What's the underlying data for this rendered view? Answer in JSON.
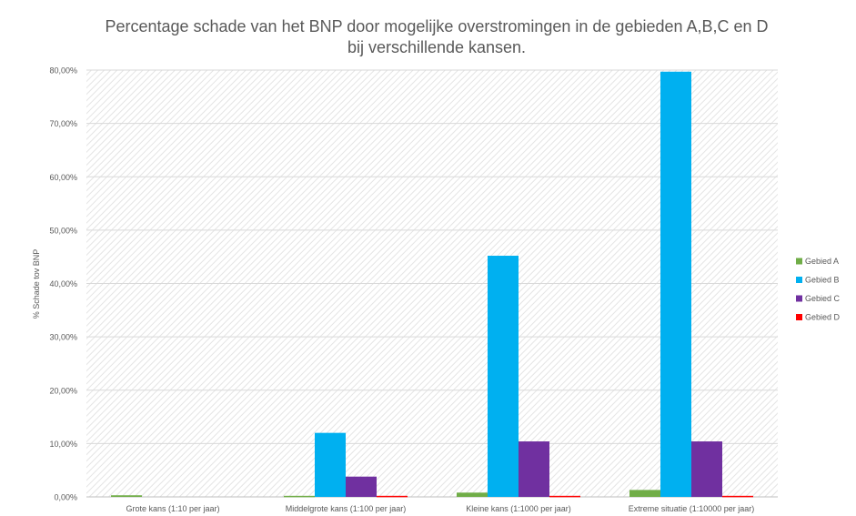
{
  "chart_data": {
    "type": "bar",
    "title_lines": [
      "Percentage schade van het BNP door mogelijke overstromingen in de gebieden A,B,C en D",
      "bij verschillende kansen."
    ],
    "xlabel": "",
    "ylabel": "% Schade tov BNP",
    "ylim": [
      0,
      80
    ],
    "yticks": [
      0,
      10,
      20,
      30,
      40,
      50,
      60,
      70,
      80
    ],
    "ytick_labels": [
      "0,00%",
      "10,00%",
      "20,00%",
      "30,00%",
      "40,00%",
      "50,00%",
      "60,00%",
      "70,00%",
      "80,00%"
    ],
    "grid": true,
    "legend_position": "right",
    "categories": [
      "Grote kans (1:10 per jaar)",
      "Middelgrote kans (1:100 per jaar)",
      "Kleine kans (1:1000 per jaar)",
      "Extreme situatie (1:10000 per jaar)"
    ],
    "series": [
      {
        "name": "Gebied A",
        "color": "#70ad47",
        "values": [
          0.3,
          0.2,
          0.8,
          1.3
        ]
      },
      {
        "name": "Gebied B",
        "color": "#00b0f0",
        "values": [
          0.0,
          12.0,
          45.2,
          79.7
        ]
      },
      {
        "name": "Gebied C",
        "color": "#7030a0",
        "values": [
          0.0,
          3.8,
          10.4,
          10.4
        ]
      },
      {
        "name": "Gebied D",
        "color": "#ff0000",
        "values": [
          0.0,
          0.2,
          0.2,
          0.2
        ]
      }
    ]
  }
}
